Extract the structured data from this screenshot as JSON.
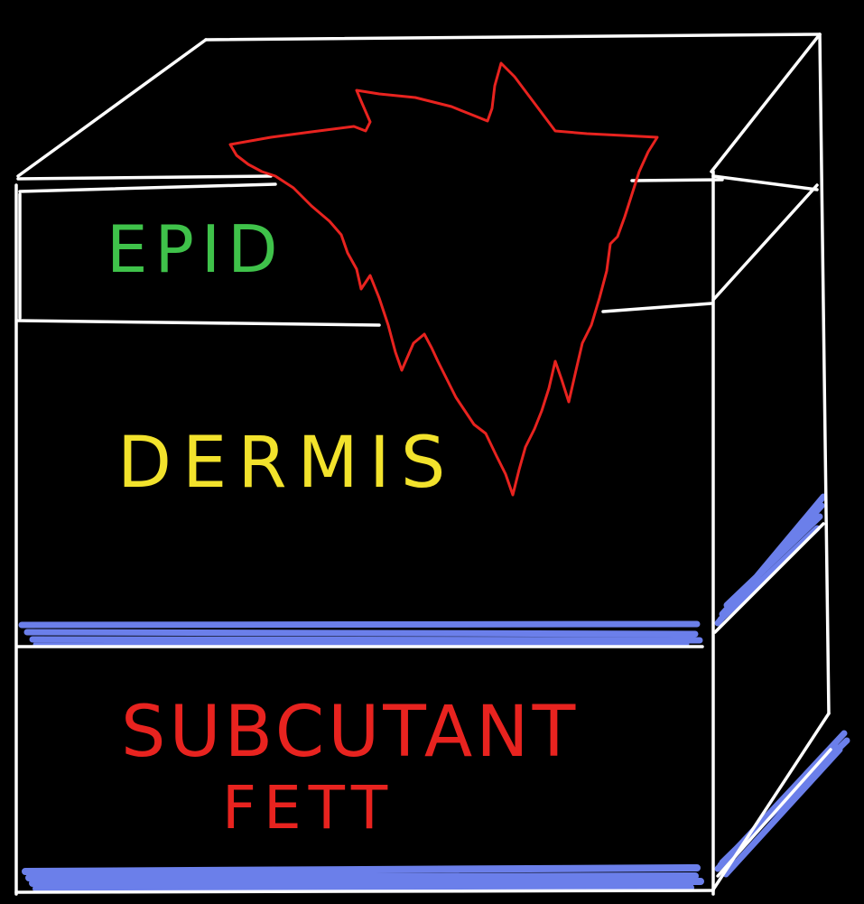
{
  "labels": {
    "epidermis": "EPID",
    "dermis": "DERMIS",
    "subcutaneous_line1": "SUBCUTANT",
    "subcutaneous_line2": "FETT"
  },
  "colors": {
    "background": "#000000",
    "box_outline": "#ffffff",
    "epidermis_label": "#3fc24a",
    "dermis_label": "#f2e22c",
    "subcutaneous_label": "#e8231f",
    "wound": "#e8231f",
    "fascia_band": "#6b7fea"
  },
  "icons": {
    "wound": "wound-shape-icon"
  }
}
